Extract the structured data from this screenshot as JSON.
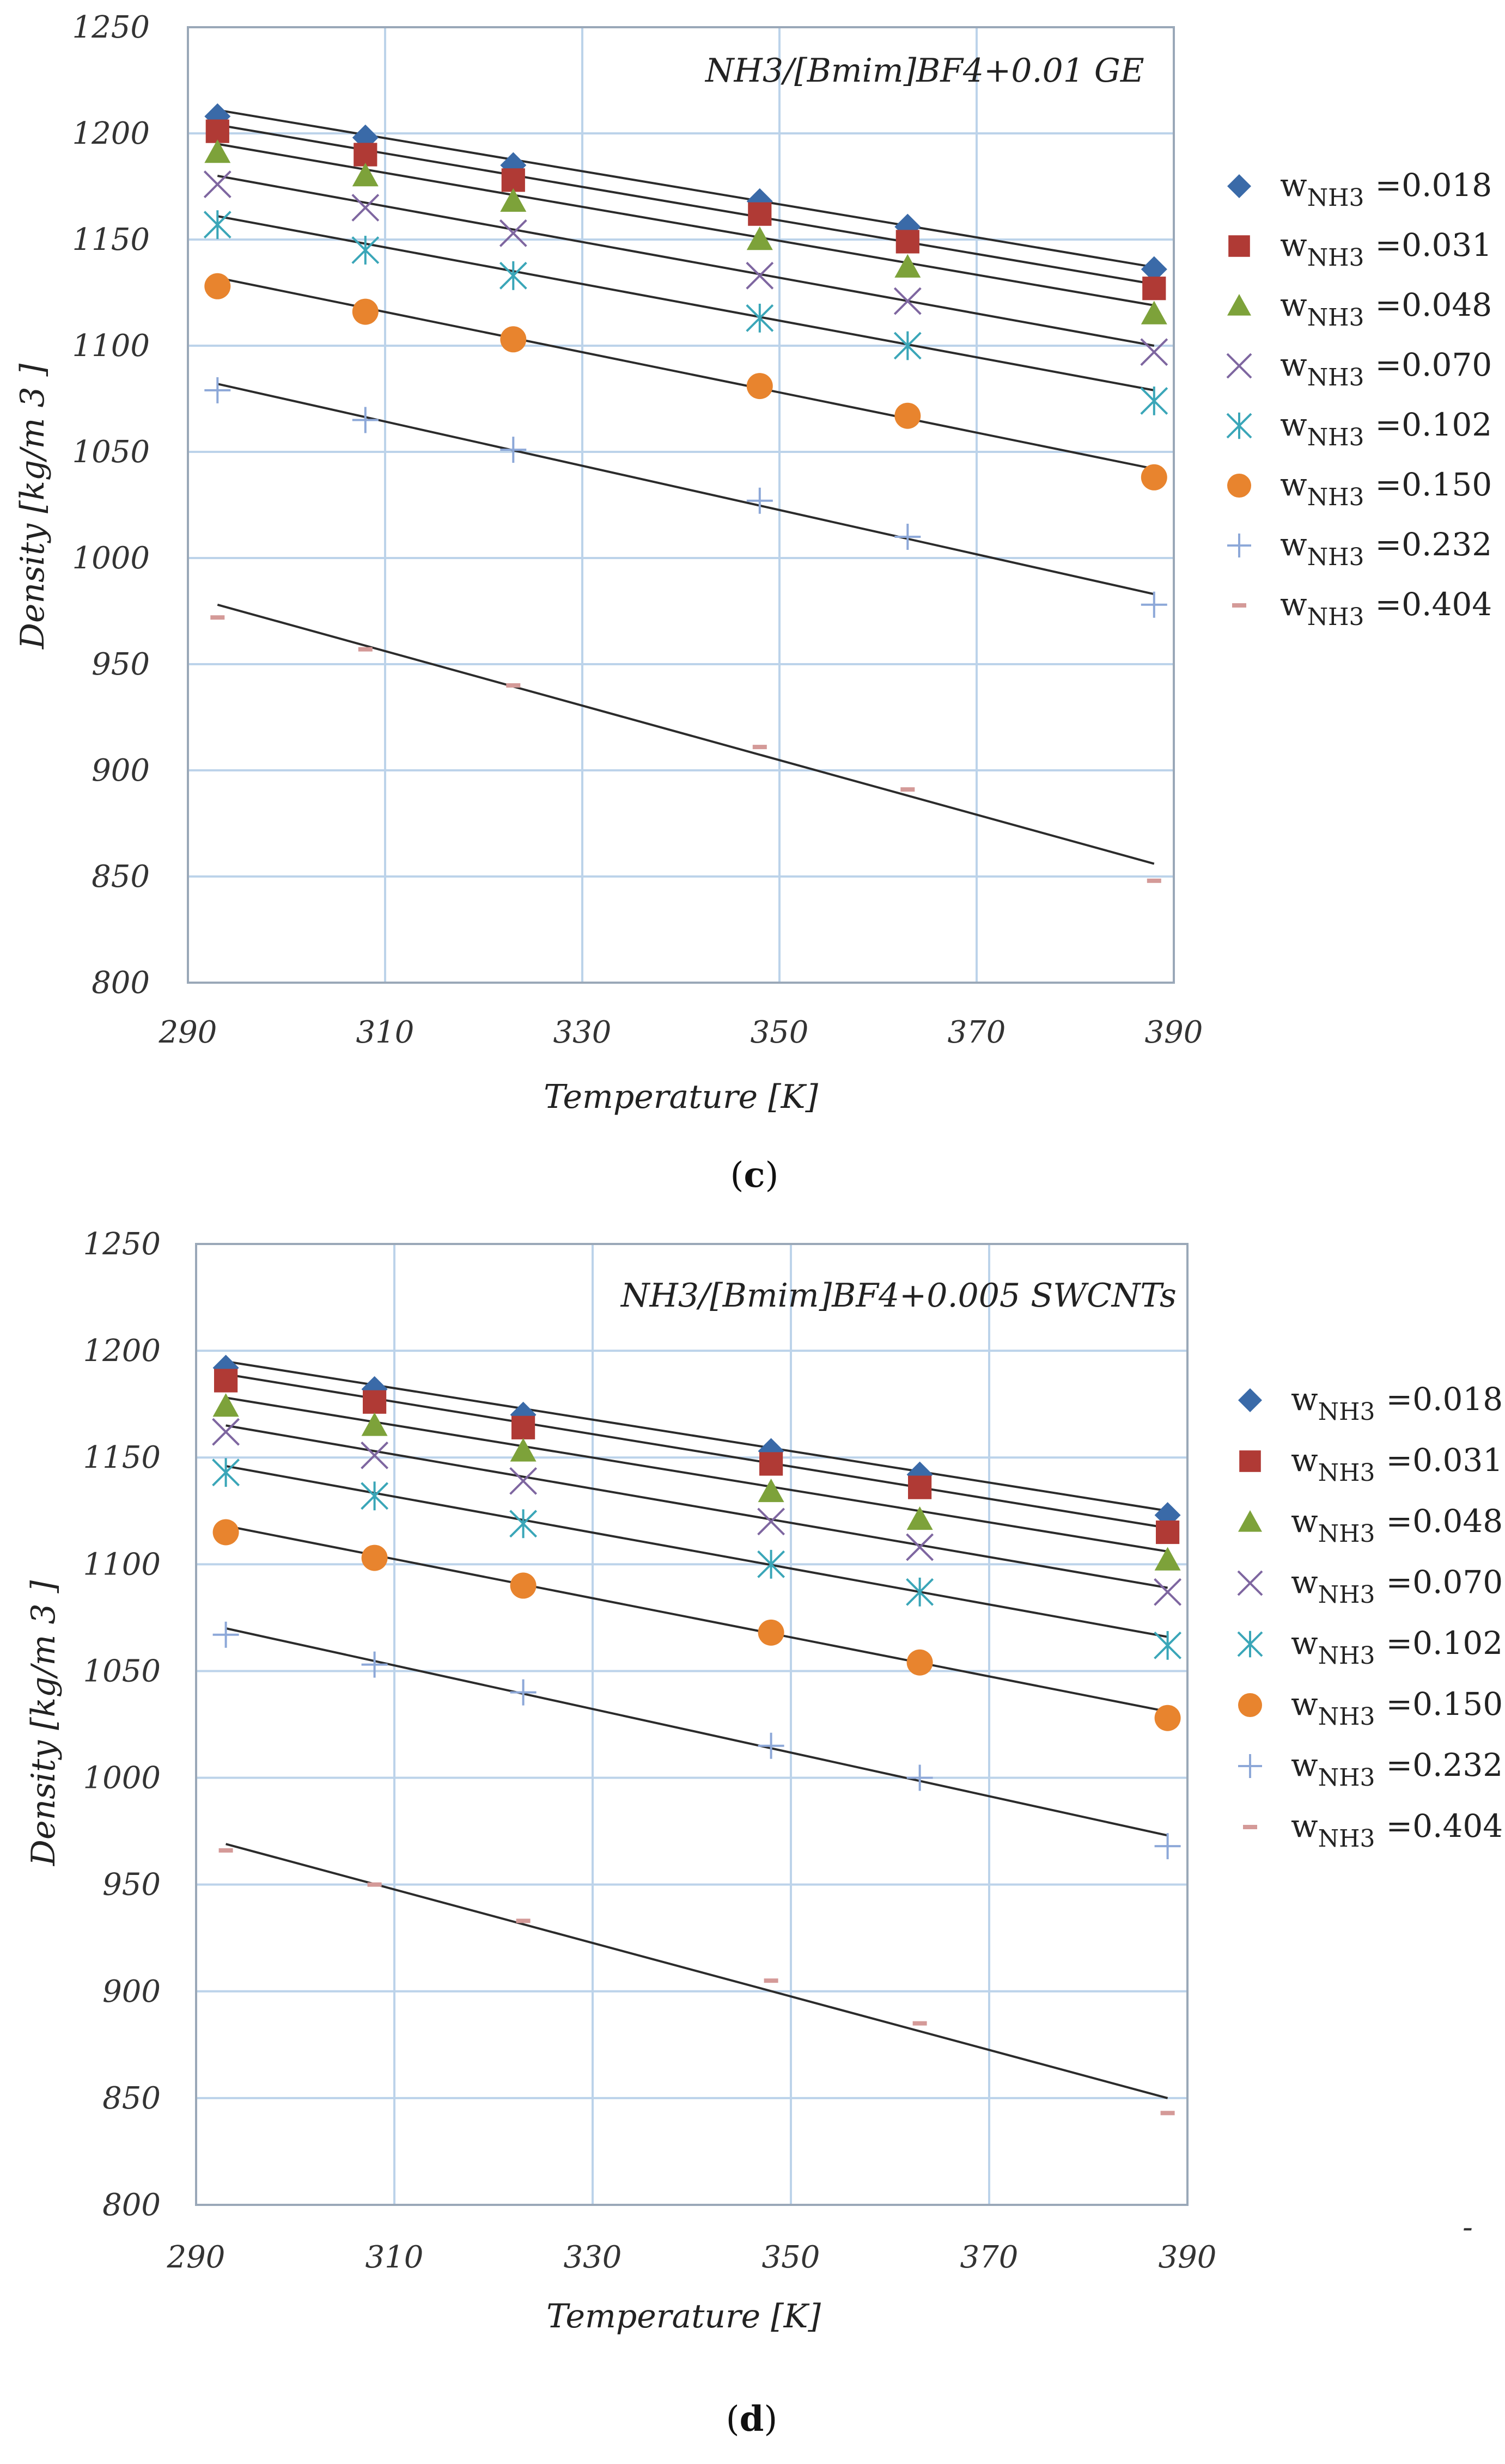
{
  "chart_data": [
    {
      "type": "scatter",
      "panel_label": "c",
      "inset_title": "NH3/[Bmim]BF4+0.01 GE",
      "xlabel": "Temperature [K]",
      "ylabel": "Density [kg/m 3 ]",
      "xlim": [
        290,
        390
      ],
      "ylim": [
        800,
        1250
      ],
      "xticks": [
        "290",
        "310",
        "330",
        "350",
        "370",
        "390"
      ],
      "yticks": [
        "800",
        "850",
        "900",
        "950",
        "1000",
        "1050",
        "1100",
        "1150",
        "1200",
        "1250"
      ],
      "legend_position": "right",
      "grid": true,
      "x": [
        293,
        308,
        323,
        348,
        363,
        388
      ],
      "series": [
        {
          "name": "w",
          "sub": "NH3",
          "value": "=0.018",
          "marker": "diamond",
          "color": "#3a6aa8",
          "values": [
            1208,
            1198,
            1185,
            1168,
            1156,
            1136
          ],
          "fit": [
            1211,
            1137
          ]
        },
        {
          "name": "w",
          "sub": "NH3",
          "value": "=0.031",
          "marker": "square",
          "color": "#b03a35",
          "values": [
            1201,
            1190,
            1178,
            1162,
            1149,
            1127
          ],
          "fit": [
            1204,
            1129
          ]
        },
        {
          "name": "w",
          "sub": "NH3",
          "value": "=0.048",
          "marker": "triangle",
          "color": "#7da23a",
          "values": [
            1191,
            1180,
            1168,
            1150,
            1137,
            1115
          ],
          "fit": [
            1195,
            1119
          ]
        },
        {
          "name": "w",
          "sub": "NH3",
          "value": "=0.070",
          "marker": "x",
          "color": "#7e66a0",
          "values": [
            1176,
            1165,
            1153,
            1133,
            1121,
            1097
          ],
          "fit": [
            1180,
            1100
          ]
        },
        {
          "name": "w",
          "sub": "NH3",
          "value": "=0.102",
          "marker": "asterisk",
          "color": "#3aa6b8",
          "values": [
            1157,
            1145,
            1133,
            1113,
            1100,
            1074
          ],
          "fit": [
            1161,
            1079
          ]
        },
        {
          "name": "w",
          "sub": "NH3",
          "value": "=0.150",
          "marker": "circle",
          "color": "#e8842e",
          "values": [
            1128,
            1116,
            1103,
            1081,
            1067,
            1038
          ],
          "fit": [
            1132,
            1042
          ]
        },
        {
          "name": "w",
          "sub": "NH3",
          "value": "=0.232",
          "marker": "plus",
          "color": "#8da8d8",
          "values": [
            1079,
            1065,
            1051,
            1027,
            1010,
            978
          ],
          "fit": [
            1082,
            983
          ]
        },
        {
          "name": "w",
          "sub": "NH3",
          "value": "=0.404",
          "marker": "dash",
          "color": "#d49a98",
          "values": [
            972,
            957,
            940,
            911,
            891,
            848
          ],
          "fit": [
            978,
            856
          ]
        }
      ]
    },
    {
      "type": "scatter",
      "panel_label": "d",
      "inset_title": "NH3/[Bmim]BF4+0.005 SWCNTs",
      "xlabel": "Temperature [K]",
      "ylabel": "Density [kg/m 3 ]",
      "xlim": [
        290,
        390
      ],
      "ylim": [
        800,
        1250
      ],
      "xticks": [
        "290",
        "310",
        "330",
        "350",
        "370",
        "390"
      ],
      "yticks": [
        "800",
        "850",
        "900",
        "950",
        "1000",
        "1050",
        "1100",
        "1150",
        "1200",
        "1250"
      ],
      "legend_position": "right",
      "grid": true,
      "x": [
        293,
        308,
        323,
        348,
        363,
        388
      ],
      "series": [
        {
          "name": "w",
          "sub": "NH3",
          "value": "=0.018",
          "marker": "diamond",
          "color": "#3a6aa8",
          "values": [
            1192,
            1182,
            1170,
            1153,
            1142,
            1123
          ],
          "fit": [
            1195,
            1125
          ]
        },
        {
          "name": "w",
          "sub": "NH3",
          "value": "=0.031",
          "marker": "square",
          "color": "#b03a35",
          "values": [
            1186,
            1176,
            1164,
            1147,
            1136,
            1115
          ],
          "fit": [
            1189,
            1117
          ]
        },
        {
          "name": "w",
          "sub": "NH3",
          "value": "=0.048",
          "marker": "triangle",
          "color": "#7da23a",
          "values": [
            1174,
            1165,
            1153,
            1134,
            1121,
            1102
          ],
          "fit": [
            1178,
            1106
          ]
        },
        {
          "name": "w",
          "sub": "NH3",
          "value": "=0.070",
          "marker": "x",
          "color": "#7e66a0",
          "values": [
            1162,
            1151,
            1139,
            1120,
            1108,
            1087
          ],
          "fit": [
            1165,
            1089
          ]
        },
        {
          "name": "w",
          "sub": "NH3",
          "value": "=0.102",
          "marker": "asterisk",
          "color": "#3aa6b8",
          "values": [
            1143,
            1132,
            1119,
            1100,
            1087,
            1062
          ],
          "fit": [
            1146,
            1066
          ]
        },
        {
          "name": "w",
          "sub": "NH3",
          "value": "=0.150",
          "marker": "circle",
          "color": "#e8842e",
          "values": [
            1115,
            1103,
            1090,
            1068,
            1054,
            1028
          ],
          "fit": [
            1118,
            1031
          ]
        },
        {
          "name": "w",
          "sub": "NH3",
          "value": "=0.232",
          "marker": "plus",
          "color": "#8da8d8",
          "values": [
            1067,
            1053,
            1040,
            1015,
            1000,
            968
          ],
          "fit": [
            1070,
            973
          ]
        },
        {
          "name": "w",
          "sub": "NH3",
          "value": "=0.404",
          "marker": "dash",
          "color": "#d49a98",
          "values": [
            966,
            950,
            933,
            905,
            885,
            843
          ],
          "fit": [
            969,
            850
          ]
        }
      ]
    }
  ],
  "footer_mark": "-"
}
